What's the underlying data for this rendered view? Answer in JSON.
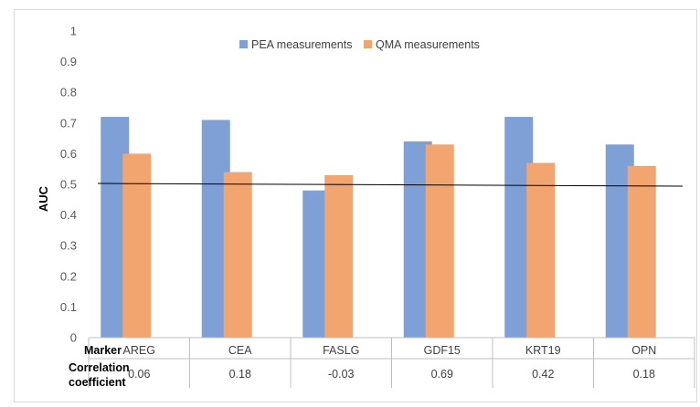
{
  "chart_data": {
    "type": "bar",
    "ylabel": "AUC",
    "ylim": [
      0,
      1
    ],
    "yticks": [
      "0",
      "0.1",
      "0.2",
      "0.3",
      "0.4",
      "0.5",
      "0.6",
      "0.7",
      "0.8",
      "0.9",
      "1"
    ],
    "grid": false,
    "legend_position": "top",
    "categories": [
      "AREG",
      "CEA",
      "FASLG",
      "GDF15",
      "KRT19",
      "OPN"
    ],
    "series": [
      {
        "name": "PEA measurements",
        "color": "#7f9fd7",
        "values": [
          0.72,
          0.71,
          0.48,
          0.64,
          0.72,
          0.63
        ]
      },
      {
        "name": "QMA measurements",
        "color": "#f2a56f",
        "values": [
          0.6,
          0.54,
          0.53,
          0.63,
          0.57,
          0.56
        ]
      }
    ],
    "reference_line": {
      "value": 0.5,
      "color": "#000000"
    },
    "table": {
      "row_labels": [
        "Marker",
        "Correlation\ncoefficient"
      ],
      "marker_label": "Marker",
      "corr_label_line1": "Correlation",
      "corr_label_line2": "coefficient",
      "correlation": [
        "0.06",
        "0.18",
        "-0.03",
        "0.69",
        "0.42",
        "0.18"
      ]
    }
  }
}
